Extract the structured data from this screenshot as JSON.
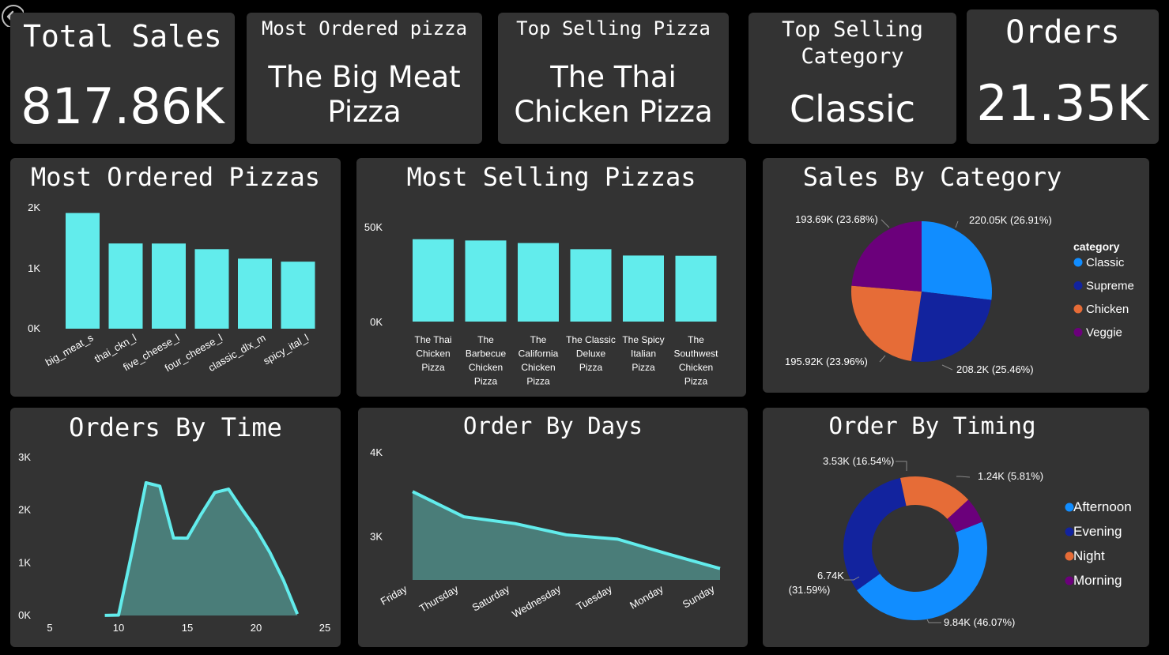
{
  "kpis": {
    "total_sales": {
      "title": "Total Sales",
      "value": "817.86K"
    },
    "most_ordered": {
      "title": "Most Ordered pizza",
      "value_line1": "The Big Meat",
      "value_line2": "Pizza"
    },
    "top_selling_pizza": {
      "title": "Top Selling Pizza",
      "value_line1": "The Thai",
      "value_line2": "Chicken Pizza"
    },
    "top_selling_category": {
      "title_line1": "Top Selling",
      "title_line2": "Category",
      "value": "Classic"
    },
    "orders": {
      "title": "Orders",
      "value": "21.35K"
    }
  },
  "colors": {
    "cyan": "#62ECEC",
    "teal_area": "#4A7D79",
    "classic": "#118DFF",
    "supreme": "#12239E",
    "chicken": "#E66C37",
    "veggie": "#6B007B"
  },
  "chart_data": [
    {
      "type": "bar",
      "title": "Most Ordered Pizzas",
      "categories": [
        "big_meat_s",
        "thai_ckn_l",
        "five_cheese_l",
        "four_cheese_l",
        "classic_dlx_m",
        "spicy_ital_l"
      ],
      "values": [
        1914,
        1410,
        1409,
        1316,
        1159,
        1109
      ],
      "yticks": [
        "0K",
        "1K",
        "2K"
      ],
      "ylim": [
        0,
        2000
      ]
    },
    {
      "type": "bar",
      "title": "Most Selling Pizzas",
      "categories": [
        [
          "The Thai",
          "Chicken",
          "Pizza"
        ],
        [
          "The",
          "Barbecue",
          "Chicken",
          "Pizza"
        ],
        [
          "The",
          "California",
          "Chicken",
          "Pizza"
        ],
        [
          "The Classic",
          "Deluxe",
          "Pizza"
        ],
        [
          "The Spicy",
          "Italian",
          "Pizza"
        ],
        [
          "The",
          "Southwest",
          "Chicken",
          "Pizza"
        ]
      ],
      "values": [
        43434,
        42768,
        41410,
        38180,
        34831,
        34706
      ],
      "yticks": [
        "0K",
        "50K"
      ],
      "ylim": [
        0,
        50000
      ]
    },
    {
      "type": "pie",
      "title": "Sales By Category",
      "legend_title": "category",
      "slices": [
        {
          "name": "Classic",
          "value": 220053,
          "label": "220.05K (26.91%)"
        },
        {
          "name": "Supreme",
          "value": 208197,
          "label": "208.2K (25.46%)"
        },
        {
          "name": "Chicken",
          "value": 195920,
          "label": "195.92K (23.96%)"
        },
        {
          "name": "Veggie",
          "value": 193690,
          "label": "193.69K (23.68%)"
        }
      ]
    },
    {
      "type": "area",
      "title": "Orders By Time",
      "x": [
        9,
        10,
        11,
        12,
        13,
        14,
        15,
        16,
        17,
        18,
        19,
        20,
        21,
        22,
        23
      ],
      "y": [
        1,
        8,
        1231,
        2520,
        2455,
        1472,
        1468,
        1920,
        2336,
        2399,
        2009,
        1642,
        1198,
        663,
        28
      ],
      "xticks": [
        "5",
        "10",
        "15",
        "20",
        "25"
      ],
      "yticks": [
        "0K",
        "1K",
        "2K",
        "3K"
      ],
      "xlim": [
        5,
        25
      ],
      "ylim": [
        0,
        3000
      ]
    },
    {
      "type": "area",
      "title": "Order By Days",
      "categories": [
        "Friday",
        "Thursday",
        "Saturday",
        "Wednesday",
        "Tuesday",
        "Monday",
        "Sunday"
      ],
      "values": [
        3538,
        3239,
        3158,
        3024,
        2973,
        2794,
        2624
      ],
      "yticks": [
        "3K",
        "4K"
      ],
      "ylim": [
        2000,
        4000
      ]
    },
    {
      "type": "donut",
      "title": "Order By Timing",
      "slices": [
        {
          "name": "Afternoon",
          "value": 9840,
          "label": "9.84K (46.07%)"
        },
        {
          "name": "Evening",
          "value": 6740,
          "label_line1": "6.74K",
          "label_line2": "(31.59%)"
        },
        {
          "name": "Night",
          "value": 3530,
          "label": "3.53K (16.54%)"
        },
        {
          "name": "Morning",
          "value": 1240,
          "label": "1.24K (5.81%)"
        }
      ]
    }
  ]
}
